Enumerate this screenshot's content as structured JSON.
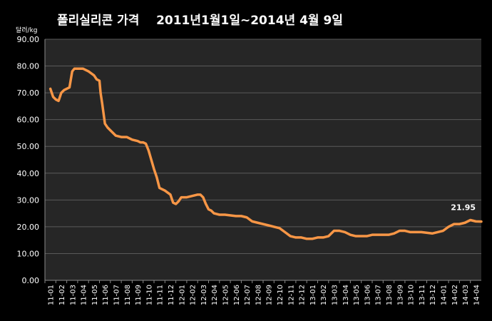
{
  "chart_data": {
    "type": "line",
    "title": "폴리실리콘 가격    2011년1월1일~2014년 4월 9일",
    "ylabel": "달러/kg",
    "xlabel": "",
    "ylim": [
      0,
      90
    ],
    "yticks": [
      "0.00",
      "10.00",
      "20.00",
      "30.00",
      "40.00",
      "50.00",
      "60.00",
      "70.00",
      "80.00",
      "90.00"
    ],
    "grid": true,
    "categories": [
      "11-01",
      "11-02",
      "11-03",
      "11-04",
      "11-05",
      "11-06",
      "11-07",
      "11-08",
      "11-09",
      "11-10",
      "11-11",
      "11-12",
      "12-01",
      "12-02",
      "12-03",
      "12-04",
      "12-05",
      "12-06",
      "12-07",
      "12-08",
      "12-09",
      "12-10",
      "12-11",
      "12-12",
      "13-01",
      "13-02",
      "13-03",
      "13-04",
      "13-05",
      "13-06",
      "13-07",
      "13-08",
      "13-09",
      "13-10",
      "13-11",
      "13-12",
      "14-01",
      "14-02",
      "14-03",
      "14-04"
    ],
    "series": [
      {
        "color": "#F79646",
        "x": [
          0,
          0.25,
          0.5,
          0.75,
          1.0,
          1.25,
          1.5,
          1.75,
          2.0,
          2.2,
          2.5,
          3.0,
          3.25,
          3.5,
          4.0,
          4.25,
          4.5,
          4.6,
          4.75,
          5.0,
          5.25,
          5.5,
          6.0,
          6.5,
          6.75,
          7.0,
          7.5,
          8.0,
          8.25,
          8.5,
          8.75,
          9.0,
          9.25,
          9.5,
          9.75,
          10.0,
          10.5,
          11.0,
          11.25,
          11.5,
          11.75,
          12.0,
          12.5,
          13.0,
          13.5,
          13.75,
          14.0,
          14.25,
          14.5,
          14.75,
          15.0,
          15.5,
          16.0,
          17.0,
          17.5,
          18.0,
          18.5,
          19.0,
          19.5,
          20.0,
          20.5,
          21.0,
          21.5,
          22.0,
          22.5,
          23.0,
          23.5,
          24.0,
          24.5,
          25.0,
          25.5,
          26.0,
          26.5,
          27.0,
          27.5,
          28.0,
          28.5,
          29.0,
          29.5,
          30.0,
          31.0,
          31.5,
          32.0,
          32.5,
          33.0,
          34.0,
          35.0,
          35.5,
          36.0,
          36.5,
          37.0,
          37.5,
          38.0,
          38.5,
          39.0,
          39.5
        ],
        "values": [
          71.5,
          68.5,
          67.5,
          67,
          70,
          71,
          71.5,
          72,
          78,
          79,
          79,
          79,
          78.5,
          78,
          76.5,
          75,
          74.5,
          70,
          66,
          58.5,
          57,
          56,
          54,
          53.5,
          53.5,
          53.5,
          52.5,
          52,
          51.5,
          51.5,
          51,
          48.5,
          45,
          41.5,
          38.5,
          34.5,
          33.5,
          32,
          29,
          28.5,
          29.5,
          31,
          31,
          31.5,
          32,
          32,
          31,
          28.5,
          26.5,
          26,
          25,
          24.5,
          24.5,
          24,
          24,
          23.5,
          22,
          21.5,
          21,
          20.5,
          20,
          19.5,
          18,
          16.5,
          16,
          16,
          15.5,
          15.5,
          16,
          16,
          16.5,
          18.5,
          18.5,
          18,
          17,
          16.5,
          16.5,
          16.5,
          17,
          17,
          17,
          17.5,
          18.5,
          18.5,
          18,
          18,
          17.5,
          18,
          18.5,
          20,
          21,
          21,
          21.5,
          22.5,
          22,
          21.95
        ]
      }
    ],
    "annotation": {
      "text": "21.95",
      "x": 38.5,
      "y": 21.95
    }
  }
}
